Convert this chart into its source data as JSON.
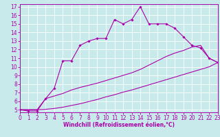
{
  "xlabel": "Windchill (Refroidissement éolien,°C)",
  "xlim": [
    0,
    23
  ],
  "ylim": [
    4.7,
    17.3
  ],
  "yticks": [
    5,
    6,
    7,
    8,
    9,
    10,
    11,
    12,
    13,
    14,
    15,
    16,
    17
  ],
  "xticks": [
    0,
    1,
    2,
    3,
    4,
    5,
    6,
    7,
    8,
    9,
    10,
    11,
    12,
    13,
    14,
    15,
    16,
    17,
    18,
    19,
    20,
    21,
    22,
    23
  ],
  "bg_color": "#c8eaea",
  "line_color": "#aa00aa",
  "line1_x": [
    0,
    1,
    2,
    3,
    4,
    5,
    6,
    7,
    8,
    9,
    10,
    11,
    12,
    13,
    14,
    15,
    16,
    17,
    18,
    19,
    20,
    21,
    22,
    23
  ],
  "line1_y": [
    5.0,
    4.85,
    4.85,
    6.3,
    7.5,
    10.7,
    10.7,
    12.5,
    13.0,
    13.3,
    13.3,
    15.5,
    15.0,
    15.5,
    17.0,
    15.0,
    15.0,
    15.0,
    14.5,
    13.5,
    12.5,
    12.2,
    11.0,
    10.5
  ],
  "line2_x": [
    0,
    1,
    2,
    3,
    4,
    5,
    6,
    7,
    8,
    9,
    10,
    11,
    12,
    13,
    14,
    15,
    16,
    17,
    18,
    19,
    20,
    21,
    22,
    23
  ],
  "line2_y": [
    5.0,
    5.0,
    5.0,
    5.05,
    5.15,
    5.3,
    5.5,
    5.7,
    5.95,
    6.2,
    6.5,
    6.75,
    7.05,
    7.3,
    7.6,
    7.9,
    8.2,
    8.5,
    8.8,
    9.1,
    9.4,
    9.7,
    10.0,
    10.5
  ],
  "line3_x": [
    0,
    1,
    2,
    3,
    4,
    5,
    6,
    7,
    8,
    9,
    10,
    11,
    12,
    13,
    14,
    15,
    16,
    17,
    18,
    19,
    20,
    21,
    22,
    23
  ],
  "line3_y": [
    5.0,
    5.0,
    5.0,
    6.3,
    6.6,
    6.9,
    7.3,
    7.6,
    7.85,
    8.1,
    8.4,
    8.7,
    9.0,
    9.3,
    9.7,
    10.2,
    10.7,
    11.2,
    11.6,
    11.9,
    12.3,
    12.5,
    11.0,
    10.5
  ],
  "tick_fontsize": 5.5,
  "xlabel_fontsize": 5.5
}
